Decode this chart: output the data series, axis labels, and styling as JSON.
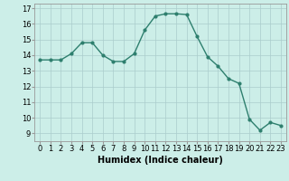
{
  "x": [
    0,
    1,
    2,
    3,
    4,
    5,
    6,
    7,
    8,
    9,
    10,
    11,
    12,
    13,
    14,
    15,
    16,
    17,
    18,
    19,
    20,
    21,
    22,
    23
  ],
  "y": [
    13.7,
    13.7,
    13.7,
    14.1,
    14.8,
    14.8,
    14.0,
    13.6,
    13.6,
    14.1,
    15.6,
    16.5,
    16.65,
    16.65,
    16.6,
    15.2,
    13.9,
    13.3,
    12.5,
    12.2,
    9.9,
    9.2,
    9.7,
    9.5
  ],
  "line_color": "#2e7f6e",
  "marker": "o",
  "markersize": 2.0,
  "linewidth": 1.0,
  "xlabel": "Humidex (Indice chaleur)",
  "xlim": [
    -0.5,
    23.5
  ],
  "ylim": [
    8.5,
    17.3
  ],
  "yticks": [
    9,
    10,
    11,
    12,
    13,
    14,
    15,
    16,
    17
  ],
  "xticks": [
    0,
    1,
    2,
    3,
    4,
    5,
    6,
    7,
    8,
    9,
    10,
    11,
    12,
    13,
    14,
    15,
    16,
    17,
    18,
    19,
    20,
    21,
    22,
    23
  ],
  "bg_color": "#cceee8",
  "grid_color": "#aacccc",
  "xlabel_fontsize": 7,
  "tick_fontsize": 6
}
